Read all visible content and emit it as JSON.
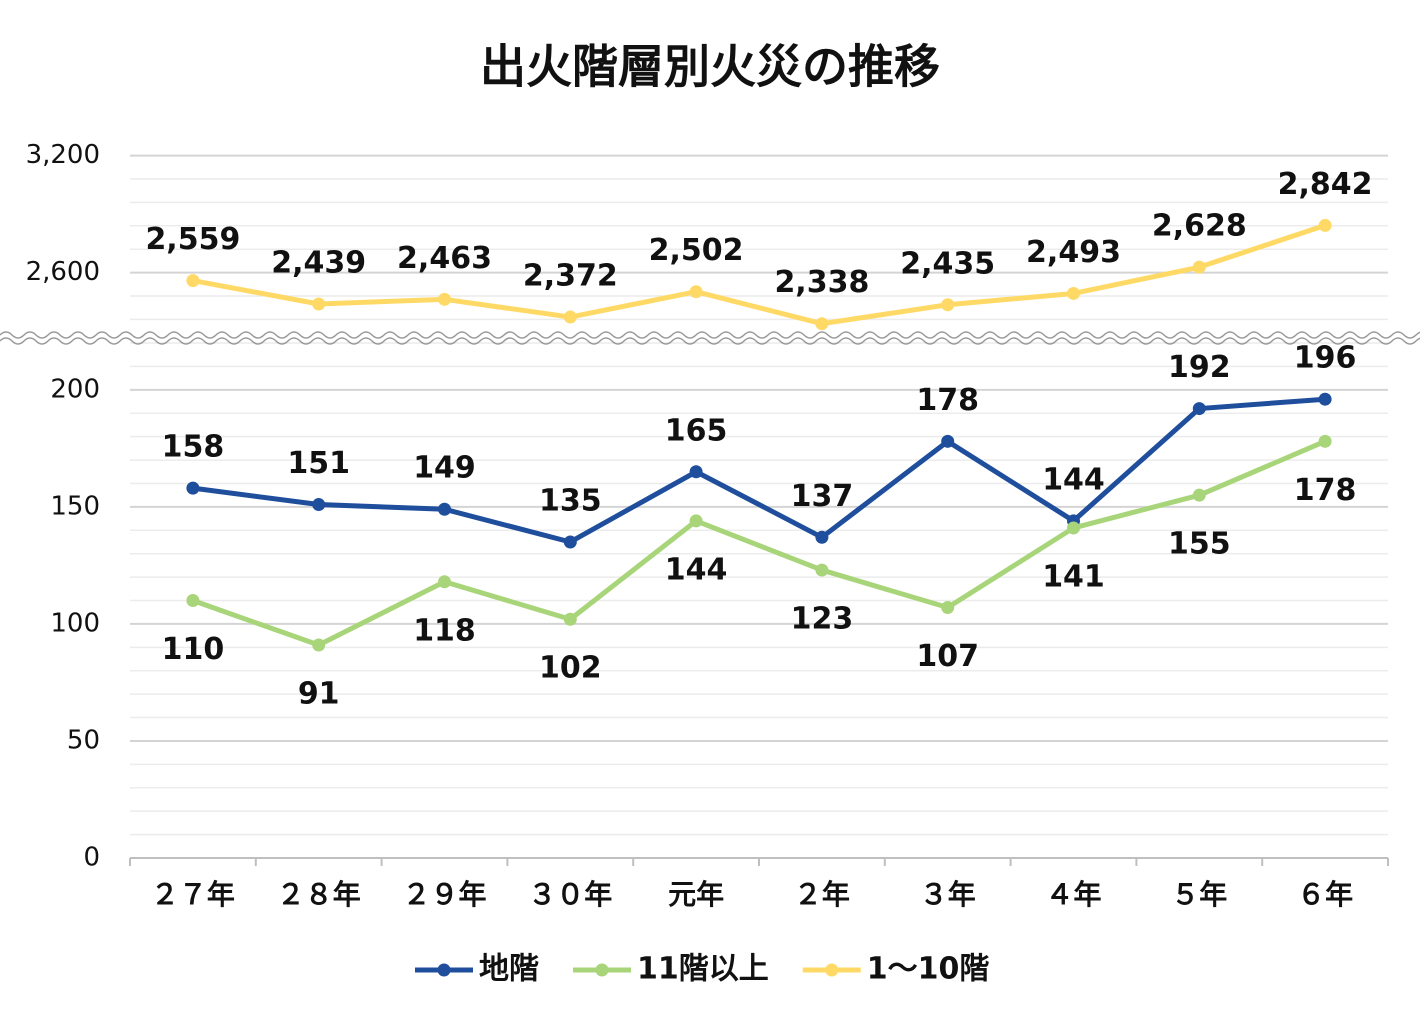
{
  "chart_data": {
    "type": "line",
    "title": "出火階層別火災の推移",
    "categories": [
      "２７年",
      "２８年",
      "２９年",
      "３０年",
      "元年",
      "２年",
      "３年",
      "４年",
      "５年",
      "６年"
    ],
    "series": [
      {
        "name": "地階",
        "color": "#1f4e9c",
        "values": [
          158,
          151,
          149,
          135,
          165,
          137,
          178,
          144,
          192,
          196
        ]
      },
      {
        "name": "11階以上",
        "color": "#a9d57a",
        "values": [
          110,
          91,
          118,
          102,
          144,
          123,
          107,
          141,
          155,
          178
        ]
      },
      {
        "name": "1～10階",
        "color": "#ffd966",
        "axis": "y2",
        "values": [
          2559,
          2439,
          2463,
          2372,
          2502,
          2338,
          2435,
          2493,
          2628,
          2842
        ],
        "value_labels": [
          "2,559",
          "2,439",
          "2,463",
          "2,372",
          "2,502",
          "2,338",
          "2,435",
          "2,493",
          "2,628",
          "2,842"
        ]
      }
    ],
    "ylim": [
      0,
      223
    ],
    "yticks": [
      0,
      50,
      100,
      150,
      200
    ],
    "y2lim": [
      2280,
      3280
    ],
    "y2ticks": [
      {
        "value": 2600,
        "label": "2,600"
      },
      {
        "value": 3200,
        "label": "3,200"
      }
    ],
    "grid": true,
    "legend": "bottom"
  }
}
